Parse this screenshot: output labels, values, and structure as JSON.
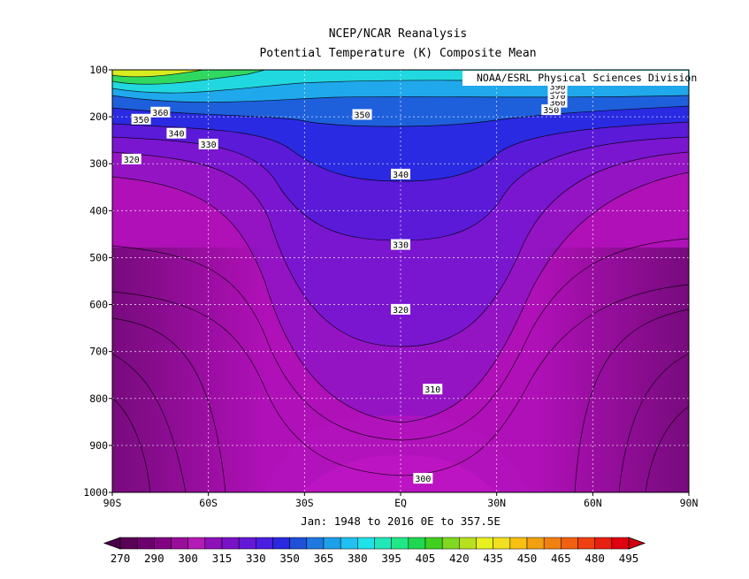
{
  "title": "NCEP/NCAR Reanalysis",
  "subtitle": "Potential Temperature (K) Composite Mean",
  "credit": "NOAA/ESRL Physical Sciences Division",
  "date_range": "Jan: 1948 to 2016 0E to 357.5E",
  "chart_data": {
    "type": "contour",
    "variable": "Potential Temperature (K)",
    "x_ticks": [
      "90S",
      "60S",
      "30S",
      "EQ",
      "30N",
      "60N",
      "90N"
    ],
    "x_values": [
      -90,
      -60,
      -30,
      0,
      30,
      60,
      90
    ],
    "y_ticks": [
      "100",
      "200",
      "300",
      "400",
      "500",
      "600",
      "700",
      "800",
      "900",
      "1000"
    ],
    "y_values": [
      100,
      200,
      300,
      400,
      500,
      600,
      700,
      800,
      900,
      1000
    ],
    "xlim": [
      -90,
      90
    ],
    "ylim": [
      1000,
      100
    ],
    "grid": true,
    "contour_interval": 5,
    "contour_labels": [
      {
        "text": "360",
        "lat": -75,
        "p": 190
      },
      {
        "text": "350",
        "lat": -81,
        "p": 205
      },
      {
        "text": "340",
        "lat": -70,
        "p": 235
      },
      {
        "text": "330",
        "lat": -60,
        "p": 258
      },
      {
        "text": "320",
        "lat": -84,
        "p": 290
      },
      {
        "text": "350",
        "lat": -12,
        "p": 195
      },
      {
        "text": "340",
        "lat": 0,
        "p": 322
      },
      {
        "text": "330",
        "lat": 0,
        "p": 472
      },
      {
        "text": "320",
        "lat": 0,
        "p": 610
      },
      {
        "text": "310",
        "lat": 10,
        "p": 780
      },
      {
        "text": "300",
        "lat": 7,
        "p": 970
      },
      {
        "text": "350",
        "lat": 47,
        "p": 185
      },
      {
        "text": "360",
        "lat": 49,
        "p": 169
      },
      {
        "text": "370",
        "lat": 49,
        "p": 155
      },
      {
        "text": "380",
        "lat": 49,
        "p": 143
      },
      {
        "text": "390",
        "lat": 49,
        "p": 135
      }
    ],
    "colorbar": {
      "labels": [
        "270",
        "290",
        "300",
        "315",
        "330",
        "350",
        "365",
        "380",
        "395",
        "405",
        "420",
        "435",
        "450",
        "465",
        "480",
        "495"
      ],
      "colors": [
        "#5a0056",
        "#6c006c",
        "#820382",
        "#9a0c9a",
        "#b41ab4",
        "#8e10b8",
        "#7a12c8",
        "#6418d6",
        "#4a1ee0",
        "#2a28e0",
        "#1e50d8",
        "#1e78e0",
        "#1ea0e8",
        "#20c0f0",
        "#20e0e8",
        "#20e8b8",
        "#20e888",
        "#20d850",
        "#40d020",
        "#80d820",
        "#b8e020",
        "#e8f020",
        "#f0e020",
        "#f8c010",
        "#f0a010",
        "#f08010",
        "#f06010",
        "#f04010",
        "#e82010",
        "#e00010"
      ],
      "min": 270,
      "max": 495
    }
  }
}
